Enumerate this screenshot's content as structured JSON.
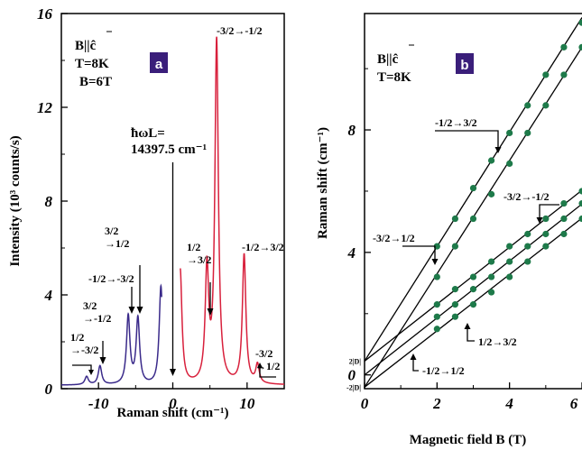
{
  "chart_data": [
    {
      "type": "line",
      "panel_label": "a",
      "xlabel": "Raman shift (cm⁻¹)",
      "ylabel": "Intensity (10³ counts/s)",
      "xlim": [
        -15,
        15
      ],
      "ylim": [
        0,
        16
      ],
      "xticks": [
        -10,
        0,
        10
      ],
      "yticks": [
        0,
        4,
        8,
        12,
        16
      ],
      "info_lines": [
        "B||ĉ",
        "T=8K",
        "B=6T"
      ],
      "laser_label": [
        "ħωL=",
        "14397.5 cm⁻¹"
      ],
      "laser_position": 0,
      "series": [
        {
          "color": "#3a2a8a",
          "x_range": [
            -15,
            -1.5
          ],
          "peaks": [
            {
              "x": -11.6,
              "y": 0.35
            },
            {
              "x": -9.8,
              "y": 0.8
            },
            {
              "x": -6.0,
              "y": 2.9
            },
            {
              "x": -4.7,
              "y": 2.8
            },
            {
              "x": -1.6,
              "y": 4.2
            }
          ]
        },
        {
          "color": "#d8203c",
          "x_range": [
            1,
            15
          ],
          "peaks": [
            {
              "x": 1.0,
              "y": 4.9
            },
            {
              "x": 4.6,
              "y": 4.8
            },
            {
              "x": 5.9,
              "y": 14.6
            },
            {
              "x": 9.6,
              "y": 5.5
            },
            {
              "x": 11.4,
              "y": 0.8
            }
          ]
        }
      ],
      "annotations": [
        {
          "lines": [
            "1/2",
            "→-3/2"
          ],
          "x": -11.6,
          "y": 0.35
        },
        {
          "lines": [
            "3/2",
            "→-1/2"
          ],
          "x": -9.8,
          "y": 0.8
        },
        {
          "lines": [
            "-1/2→-3/2"
          ],
          "x": -6.0,
          "y": 2.9
        },
        {
          "lines": [
            "3/2",
            "→1/2"
          ],
          "x": -4.7,
          "y": 2.8
        },
        {
          "lines": [
            "1/2",
            "→3/2"
          ],
          "x": 4.6,
          "y": 4.8
        },
        {
          "lines": [
            "-3/2→-1/2"
          ],
          "x": 5.9,
          "y": 14.6
        },
        {
          "lines": [
            "-1/2→3/2"
          ],
          "x": 9.6,
          "y": 5.5
        },
        {
          "lines": [
            "-3/2",
            "→1/2"
          ],
          "x": 11.4,
          "y": 0.8
        }
      ]
    },
    {
      "type": "scatter",
      "panel_label": "b",
      "xlabel": "Magnetic field B (T)",
      "ylabel": "Raman shift (cm⁻¹)",
      "xlim": [
        0,
        6
      ],
      "ylim": [
        -0.45,
        11.8
      ],
      "xticks": [
        0,
        2,
        4,
        6
      ],
      "yticks": [
        0,
        4,
        8
      ],
      "extra_y_labels": [
        {
          "text": "2|D|",
          "y": 0.45
        },
        {
          "text": "-2|D|",
          "y": -0.4
        }
      ],
      "info_lines": [
        "B||ĉ",
        "T=8K"
      ],
      "marker_color": "#1e7a4a",
      "series": [
        {
          "name": "-3/2→1/2",
          "fit": {
            "intercept": 0.45,
            "slope": 1.87
          },
          "x": [
            2,
            2.5,
            3,
            3.5,
            4,
            4.5,
            5,
            5.5,
            6
          ],
          "y": [
            4.2,
            5.1,
            6.1,
            7.0,
            7.9,
            8.8,
            9.8,
            10.7,
            11.5
          ]
        },
        {
          "name": "-1/2→3/2",
          "fit": {
            "intercept": -0.4,
            "slope": 1.85
          },
          "x": [
            2,
            2.5,
            3,
            3.5,
            4,
            4.5,
            5,
            5.5,
            6
          ],
          "y": [
            3.2,
            4.2,
            5.1,
            5.9,
            6.9,
            7.9,
            8.8,
            9.8,
            10.7
          ]
        },
        {
          "name": "-3/2→-1/2",
          "fit": {
            "intercept": 0.45,
            "slope": 0.93
          },
          "x": [
            2,
            2.5,
            3,
            3.5,
            4,
            4.5,
            5,
            5.5,
            6
          ],
          "y": [
            2.3,
            2.8,
            3.2,
            3.7,
            4.2,
            4.6,
            5.1,
            5.6,
            6.0
          ]
        },
        {
          "name": "1/2→3/2",
          "fit": {
            "intercept": 0,
            "slope": 0.93
          },
          "x": [
            2,
            2.5,
            3,
            3.5,
            4,
            4.5,
            5,
            5.5,
            6
          ],
          "y": [
            1.9,
            2.3,
            2.8,
            3.2,
            3.7,
            4.2,
            4.6,
            5.1,
            5.6
          ]
        },
        {
          "name": "-1/2→1/2",
          "fit": {
            "intercept": -0.4,
            "slope": 0.92
          },
          "x": [
            2,
            2.5,
            3,
            3.5,
            4,
            4.5,
            5,
            5.5,
            6
          ],
          "y": [
            1.5,
            1.9,
            2.3,
            2.7,
            3.2,
            3.7,
            4.2,
            4.6,
            5.1
          ]
        }
      ],
      "annotations": [
        {
          "text": "-1/2→3/2",
          "x": 3.7,
          "y": 7.0
        },
        {
          "text": "-3/2→1/2",
          "x": 2.0,
          "y": 4.1
        },
        {
          "text": "-3/2→-1/2",
          "x": 4.8,
          "y": 4.9
        },
        {
          "text": "1/2→3/2",
          "x": 2.9,
          "y": 2.05
        },
        {
          "text": "-1/2→1/2",
          "x": 1.3,
          "y": 0.85
        }
      ]
    }
  ],
  "badge_color": "#3a1e7a"
}
